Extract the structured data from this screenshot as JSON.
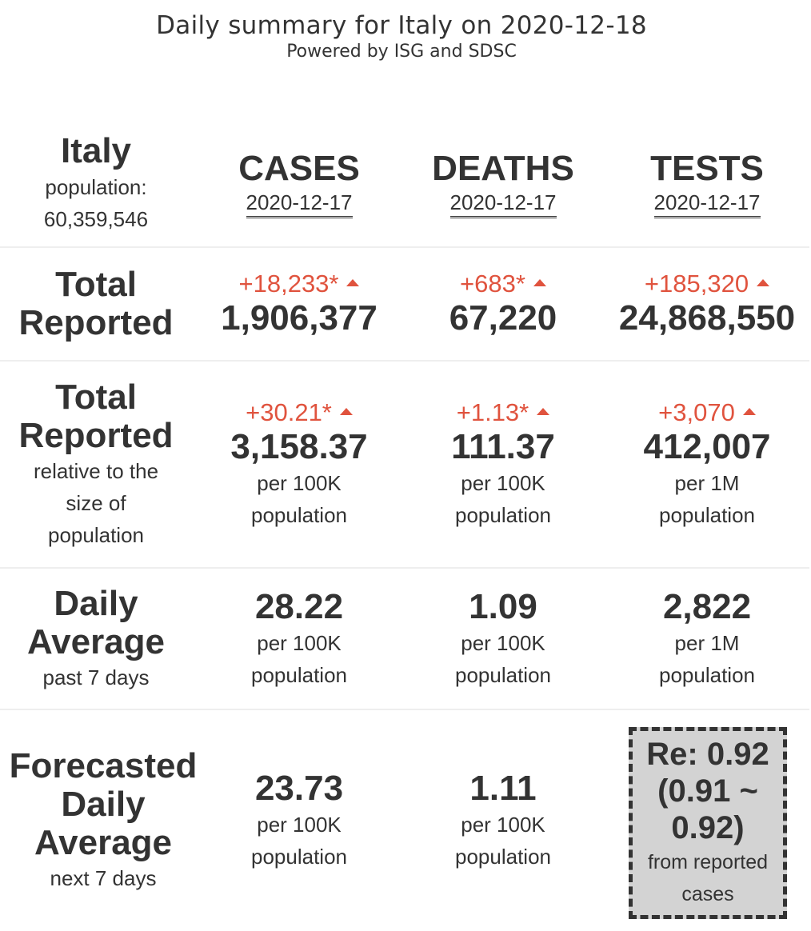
{
  "header": {
    "title": "Daily summary for Italy on 2020-12-18",
    "subtitle": "Powered by ISG and SDSC"
  },
  "country": {
    "name": "Italy",
    "population_label": "population:",
    "population_value": "60,359,546"
  },
  "columns": [
    {
      "name": "CASES",
      "date": "2020-12-17"
    },
    {
      "name": "DEATHS",
      "date": "2020-12-17"
    },
    {
      "name": "TESTS",
      "date": "2020-12-17"
    }
  ],
  "total_reported": {
    "label_line1": "Total",
    "label_line2": "Reported",
    "cases": {
      "change": "+18,233*",
      "value": "1,906,377"
    },
    "deaths": {
      "change": "+683*",
      "value": "67,220"
    },
    "tests": {
      "change": "+185,320",
      "value": "24,868,550"
    }
  },
  "relative": {
    "label_line1": "Total",
    "label_line2": "Reported",
    "sub_line1": "relative to the",
    "sub_line2": "size of",
    "sub_line3": "population",
    "cases": {
      "change": "+30.21*",
      "value": "3,158.37",
      "unit1": "per 100K",
      "unit2": "population"
    },
    "deaths": {
      "change": "+1.13*",
      "value": "111.37",
      "unit1": "per 100K",
      "unit2": "population"
    },
    "tests": {
      "change": "+3,070",
      "value": "412,007",
      "unit1": "per 1M",
      "unit2": "population"
    }
  },
  "daily_average": {
    "label_line1": "Daily",
    "label_line2": "Average",
    "sub": "past 7 days",
    "cases": {
      "value": "28.22",
      "unit1": "per 100K",
      "unit2": "population"
    },
    "deaths": {
      "value": "1.09",
      "unit1": "per 100K",
      "unit2": "population"
    },
    "tests": {
      "value": "2,822",
      "unit1": "per 1M",
      "unit2": "population"
    }
  },
  "forecast": {
    "label_line1": "Forecasted",
    "label_line2": "Daily",
    "label_line3": "Average",
    "sub": "next 7 days",
    "cases": {
      "value": "23.73",
      "unit1": "per 100K",
      "unit2": "population"
    },
    "deaths": {
      "value": "1.11",
      "unit1": "per 100K",
      "unit2": "population"
    },
    "re": {
      "line1": "Re: 0.92",
      "line2": "(0.91 ~",
      "line3": "0.92)",
      "sub1": "from reported",
      "sub2": "cases"
    }
  },
  "colors": {
    "increase": "#e0533e",
    "text": "#333333",
    "divider": "#eeeeee",
    "re_box_bg": "#d3d3d3"
  },
  "icons": {
    "increase": "triangle-up-icon"
  }
}
